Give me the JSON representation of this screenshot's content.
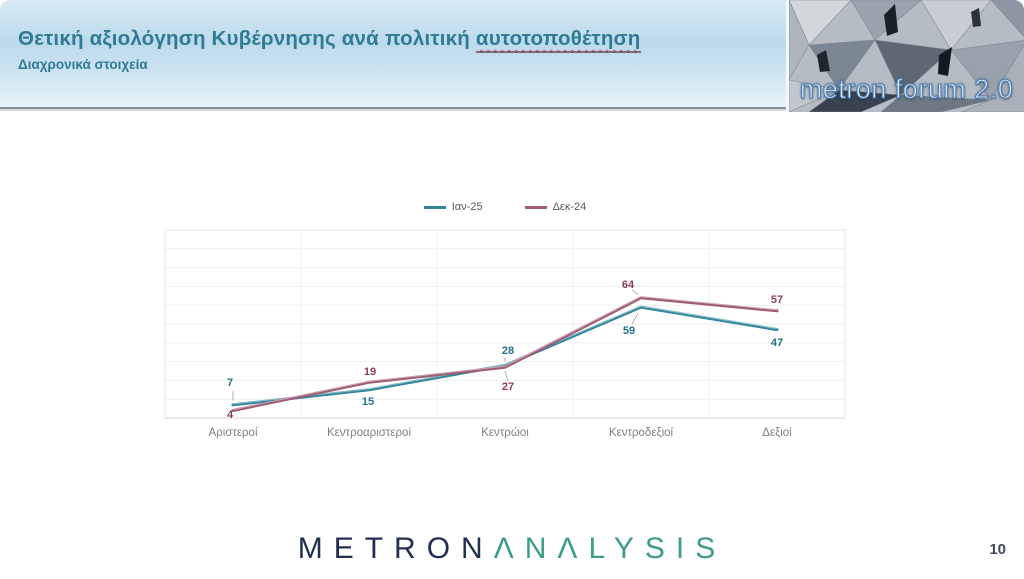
{
  "header": {
    "title_prefix": "Θετική αξιολόγηση Κυβέρνησης ανά πολιτική ",
    "title_underlined": "αυτοτοποθέτηση",
    "subtitle": "Διαχρονικά στοιχεία",
    "forum_logo_text": "metron forum 2.0"
  },
  "chart_data": {
    "type": "line",
    "title": "",
    "xlabel": "",
    "ylabel": "",
    "categories": [
      "Αριστεροί",
      "Κεντροαριστεροί",
      "Κεντρώοι",
      "Κεντροδεξιοί",
      "Δεξιοί"
    ],
    "series": [
      {
        "name": "Ιαν-25",
        "color": "#31859C",
        "label_color": "#1f7286",
        "values": [
          7,
          15,
          28,
          59,
          47
        ]
      },
      {
        "name": "Δεκ-24",
        "color": "#9E5B73",
        "label_color": "#8e3a5a",
        "values": [
          4,
          19,
          27,
          64,
          57
        ]
      }
    ],
    "ylim": [
      0,
      100
    ],
    "gridline_step": 10,
    "grid": true,
    "legend_position": "top"
  },
  "footer": {
    "logo_part1": "METRON",
    "logo_part2": "ΛNΛLYSIS",
    "page_number": "10"
  },
  "colors": {
    "title": "#2e7b93",
    "axis_label": "#7f7f7f",
    "legend_text": "#595959"
  }
}
